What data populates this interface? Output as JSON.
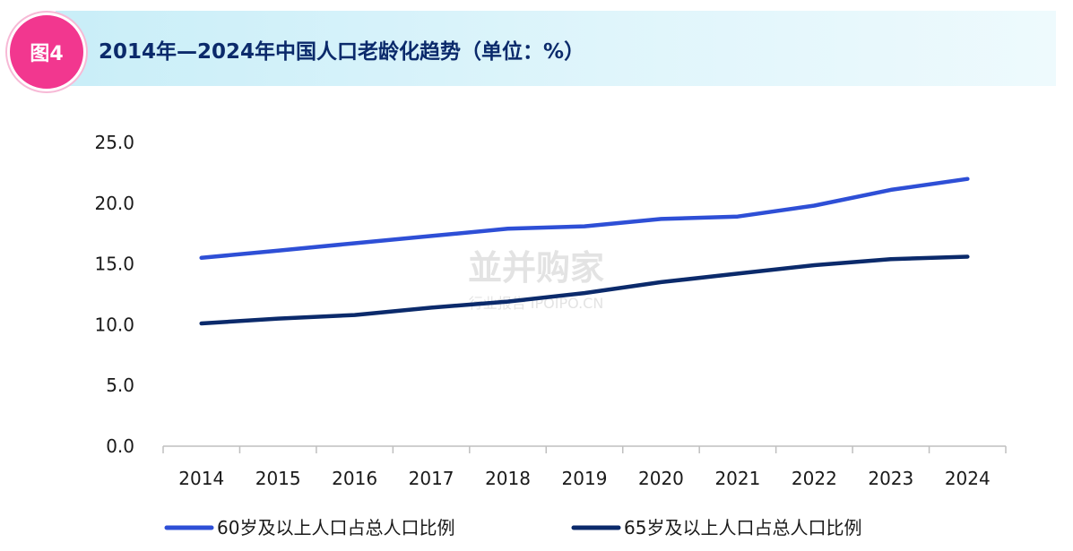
{
  "figure": {
    "badge": "图4",
    "title": "2014年—2024年中国人口老龄化趋势（单位：%）"
  },
  "watermark": {
    "main": "並并购家",
    "sub": "行业报告 IPOIPO.CN"
  },
  "chart_data": {
    "type": "line",
    "title": "2014年—2024年中国人口老龄化趋势（单位：%）",
    "x": [
      "2014",
      "2015",
      "2016",
      "2017",
      "2018",
      "2019",
      "2020",
      "2021",
      "2022",
      "2023",
      "2024"
    ],
    "y_ticks": [
      "0.0",
      "5.0",
      "10.0",
      "15.0",
      "20.0",
      "25.0"
    ],
    "ylim": [
      0,
      25
    ],
    "grid": false,
    "legend_position": "bottom",
    "series": [
      {
        "name": "60岁及以上人口占总人口比例",
        "color": "#2e4fd6",
        "values": [
          15.5,
          16.1,
          16.7,
          17.3,
          17.9,
          18.1,
          18.7,
          18.9,
          19.8,
          21.1,
          22.0
        ]
      },
      {
        "name": "65岁及以上人口占总人口比例",
        "color": "#0b2a6b",
        "values": [
          10.1,
          10.5,
          10.8,
          11.4,
          11.9,
          12.6,
          13.5,
          14.2,
          14.9,
          15.4,
          15.6
        ]
      }
    ]
  }
}
